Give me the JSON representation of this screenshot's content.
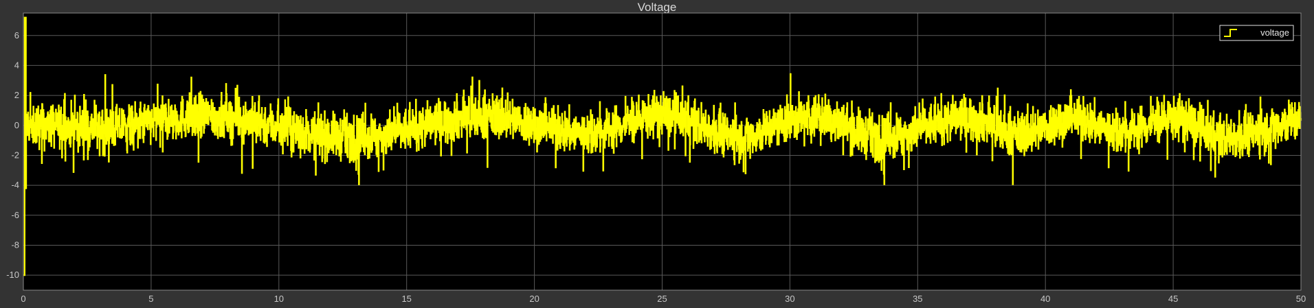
{
  "window": {
    "background_color": "#333333",
    "plot_background_color": "#000000",
    "grid_color": "#5a5a5a",
    "axis_text_color": "#c8c8c8"
  },
  "chart_data": {
    "type": "line",
    "title": "Voltage",
    "xlabel": "",
    "ylabel": "",
    "xlim": [
      0,
      50
    ],
    "ylim": [
      -11,
      7.5
    ],
    "xticks": [
      0,
      5,
      10,
      15,
      20,
      25,
      30,
      35,
      40,
      45,
      50
    ],
    "yticks": [
      -10,
      -8,
      -6,
      -4,
      -2,
      0,
      2,
      4,
      6
    ],
    "grid": true,
    "legend_position": "top-right",
    "series": [
      {
        "name": "voltage",
        "color": "#ffff00",
        "style": "step",
        "sample_time": 0.01,
        "startup_transient": [
          {
            "t": 0.0,
            "v": -10.0
          },
          {
            "t": 0.05,
            "v": 7.2
          },
          {
            "t": 0.1,
            "v": -4.2
          }
        ],
        "envelope_mean": [
          {
            "t": 0.5,
            "v": 0.0
          },
          {
            "t": 3,
            "v": -0.2
          },
          {
            "t": 7,
            "v": 0.6
          },
          {
            "t": 13,
            "v": -0.8
          },
          {
            "t": 18,
            "v": 0.6
          },
          {
            "t": 22,
            "v": -0.5
          },
          {
            "t": 25,
            "v": 0.7
          },
          {
            "t": 28,
            "v": -0.7
          },
          {
            "t": 31,
            "v": 0.6
          },
          {
            "t": 33.5,
            "v": -0.8
          },
          {
            "t": 37,
            "v": 0.5
          },
          {
            "t": 39,
            "v": -0.6
          },
          {
            "t": 41,
            "v": 0.4
          },
          {
            "t": 43,
            "v": -0.4
          },
          {
            "t": 45,
            "v": 0.5
          },
          {
            "t": 47,
            "v": -0.8
          },
          {
            "t": 50,
            "v": 0.3
          }
        ],
        "noise_amplitude": 1.3,
        "spike_max": 3.7,
        "spike_min": -4.2
      }
    ]
  }
}
